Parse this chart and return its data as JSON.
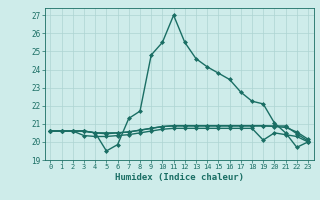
{
  "title": "",
  "xlabel": "Humidex (Indice chaleur)",
  "bg_color": "#ceecea",
  "grid_color": "#aed4d2",
  "line_color": "#1a6e64",
  "x_ticks": [
    0,
    1,
    2,
    3,
    4,
    5,
    6,
    7,
    8,
    9,
    10,
    11,
    12,
    13,
    14,
    15,
    16,
    17,
    18,
    19,
    20,
    21,
    22,
    23
  ],
  "ylim": [
    19.0,
    27.4
  ],
  "yticks": [
    19,
    20,
    21,
    22,
    23,
    24,
    25,
    26,
    27
  ],
  "series": [
    [
      20.6,
      20.6,
      20.6,
      20.6,
      20.5,
      19.5,
      19.85,
      21.3,
      21.7,
      24.8,
      25.5,
      27.0,
      25.5,
      24.6,
      24.15,
      23.8,
      23.45,
      22.75,
      22.25,
      22.1,
      21.05,
      20.5,
      19.7,
      20.0
    ],
    [
      20.6,
      20.6,
      20.6,
      20.35,
      20.3,
      20.3,
      20.35,
      20.4,
      20.5,
      20.6,
      20.7,
      20.75,
      20.75,
      20.75,
      20.75,
      20.75,
      20.75,
      20.75,
      20.75,
      20.1,
      20.5,
      20.4,
      20.3,
      20.0
    ],
    [
      20.6,
      20.6,
      20.6,
      20.6,
      20.5,
      20.45,
      20.5,
      20.55,
      20.65,
      20.75,
      20.85,
      20.9,
      20.9,
      20.9,
      20.9,
      20.9,
      20.9,
      20.9,
      20.9,
      20.9,
      20.85,
      20.8,
      20.55,
      20.15
    ],
    [
      20.6,
      20.6,
      20.6,
      20.6,
      20.5,
      20.5,
      20.5,
      20.55,
      20.65,
      20.75,
      20.85,
      20.88,
      20.88,
      20.88,
      20.88,
      20.88,
      20.88,
      20.88,
      20.88,
      20.88,
      20.88,
      20.88,
      20.45,
      20.05
    ]
  ],
  "marker": "D",
  "markersize": 2.0,
  "linewidth": 1.0
}
